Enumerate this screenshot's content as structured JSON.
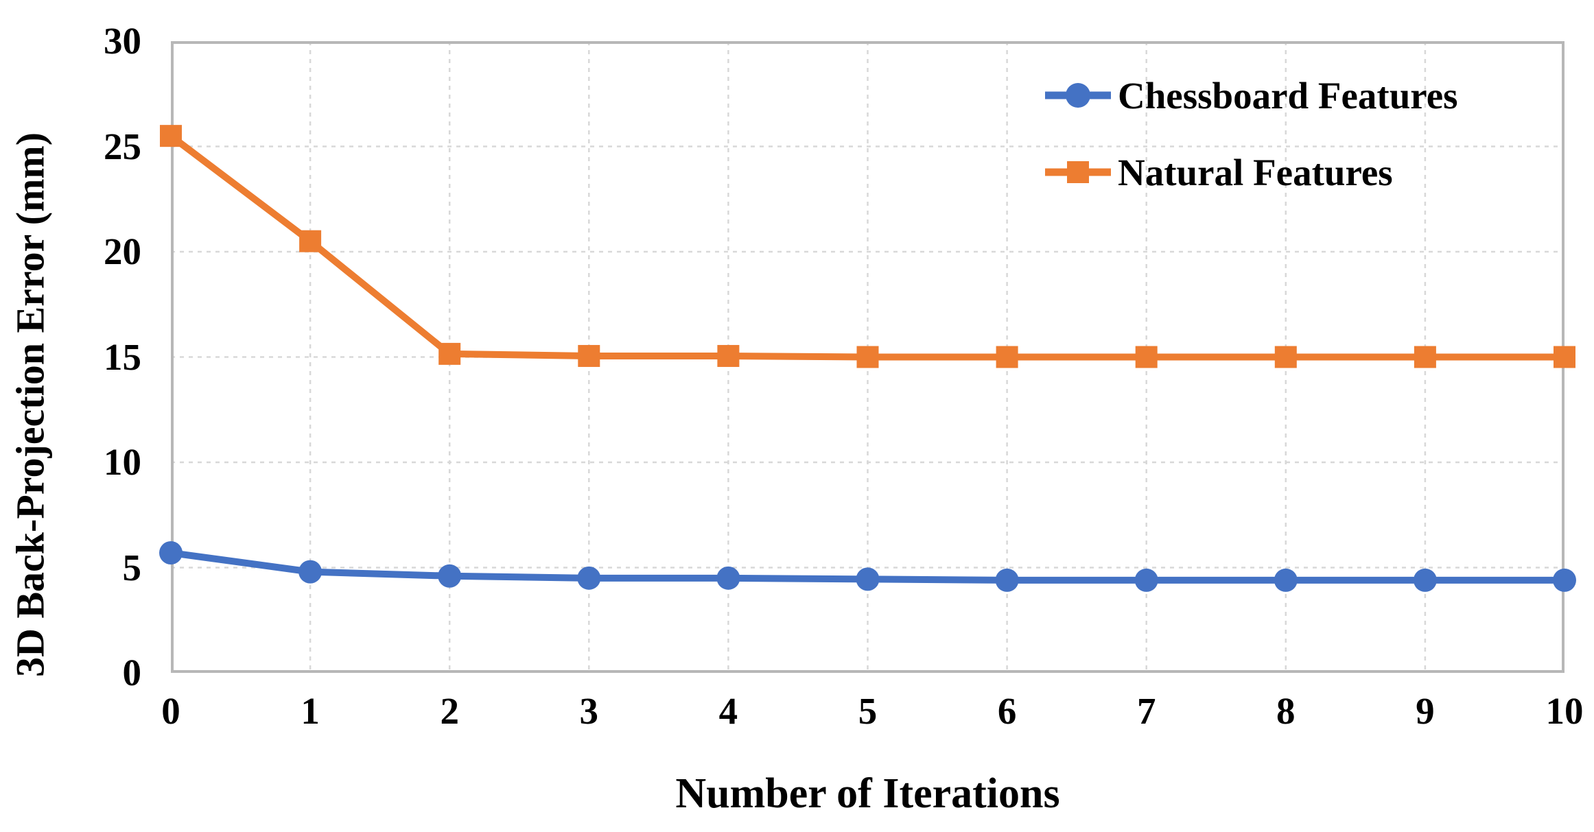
{
  "chart_data": {
    "type": "line",
    "title": "",
    "xlabel": "Number of Iterations",
    "ylabel": "3D Back-Projection Error (mm)",
    "x": [
      0,
      1,
      2,
      3,
      4,
      5,
      6,
      7,
      8,
      9,
      10
    ],
    "x_tick_labels": [
      "0",
      "1",
      "2",
      "3",
      "4",
      "5",
      "6",
      "7",
      "8",
      "9",
      "10"
    ],
    "y_ticks": [
      0,
      5,
      10,
      15,
      20,
      25,
      30
    ],
    "y_tick_labels": [
      "0",
      "5",
      "10",
      "15",
      "20",
      "25",
      "30"
    ],
    "xlim": [
      0,
      10
    ],
    "ylim": [
      0,
      30
    ],
    "grid": {
      "horizontal": "dashed every 5 units",
      "vertical": "dashed every 1 unit",
      "visible": true
    },
    "legend_position": "top-right inside plot area",
    "series": [
      {
        "name": "Chessboard Features",
        "color": "#4472C4",
        "marker": "circle",
        "values": [
          5.7,
          4.8,
          4.6,
          4.5,
          4.5,
          4.45,
          4.4,
          4.4,
          4.4,
          4.4,
          4.4
        ]
      },
      {
        "name": "Natural Features",
        "color": "#ED7D31",
        "marker": "square",
        "values": [
          25.5,
          20.5,
          15.15,
          15.05,
          15.05,
          15.0,
          15.0,
          15.0,
          15.0,
          15.0,
          15.0
        ]
      }
    ]
  },
  "colors": {
    "background": "#FFFFFF",
    "gridline": "#D8D8D8",
    "frame": "#B7B7B7",
    "text": "#000000",
    "series_blue": "#4472C4",
    "series_orange": "#ED7D31"
  }
}
